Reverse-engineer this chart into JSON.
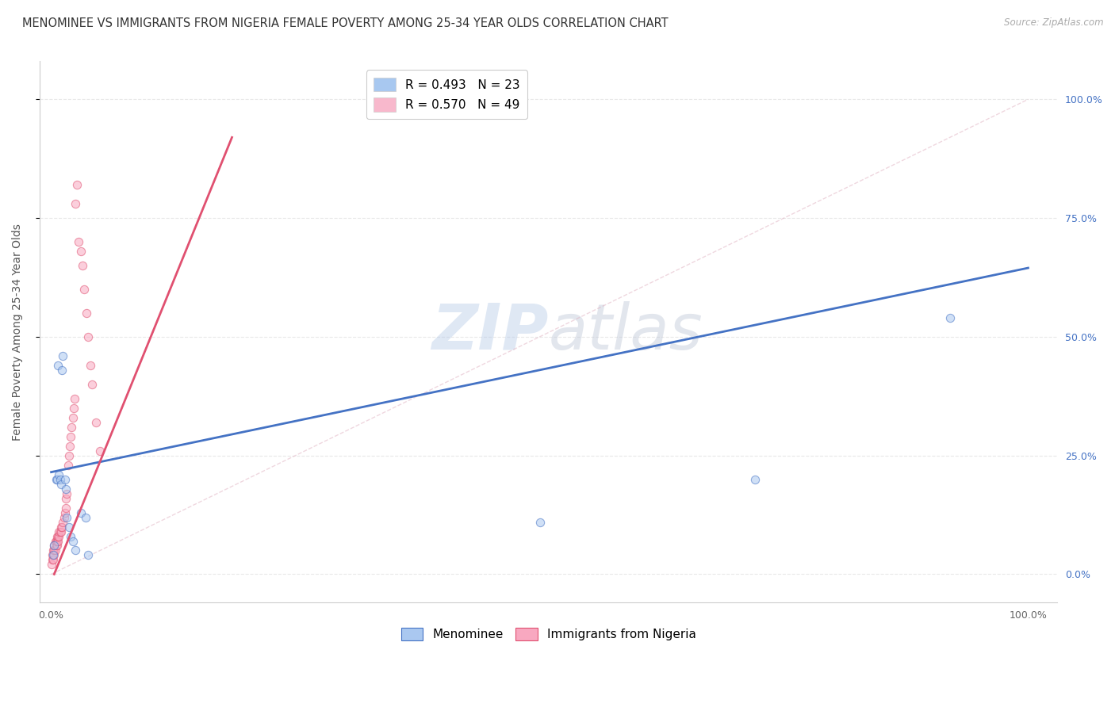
{
  "title": "MENOMINEE VS IMMIGRANTS FROM NIGERIA FEMALE POVERTY AMONG 25-34 YEAR OLDS CORRELATION CHART",
  "source": "Source: ZipAtlas.com",
  "ylabel": "Female Poverty Among 25-34 Year Olds",
  "ytick_vals": [
    0.0,
    0.25,
    0.5,
    0.75,
    1.0
  ],
  "ytick_labels": [
    "0.0%",
    "25.0%",
    "50.0%",
    "75.0%",
    "100.0%"
  ],
  "xtick_vals": [
    0.0,
    0.5,
    1.0
  ],
  "xtick_labels": [
    "0.0%",
    "",
    "100.0%"
  ],
  "watermark_zip": "ZIP",
  "watermark_atlas": "atlas",
  "legend1": [
    {
      "label": "R = 0.493   N = 23",
      "color": "#a8c8f0"
    },
    {
      "label": "R = 0.570   N = 49",
      "color": "#f8b8cc"
    }
  ],
  "legend2_menominee": "Menominee",
  "legend2_nigeria": "Immigrants from Nigeria",
  "menominee_x": [
    0.002,
    0.003,
    0.005,
    0.006,
    0.007,
    0.008,
    0.009,
    0.01,
    0.011,
    0.012,
    0.014,
    0.015,
    0.016,
    0.018,
    0.02,
    0.022,
    0.025,
    0.03,
    0.035,
    0.038,
    0.5,
    0.72,
    0.92
  ],
  "menominee_y": [
    0.04,
    0.06,
    0.2,
    0.2,
    0.44,
    0.21,
    0.2,
    0.19,
    0.43,
    0.46,
    0.2,
    0.18,
    0.12,
    0.1,
    0.08,
    0.07,
    0.05,
    0.13,
    0.12,
    0.04,
    0.11,
    0.2,
    0.54
  ],
  "nigeria_x": [
    0.0,
    0.001,
    0.001,
    0.002,
    0.002,
    0.003,
    0.003,
    0.003,
    0.004,
    0.004,
    0.005,
    0.005,
    0.006,
    0.006,
    0.006,
    0.007,
    0.007,
    0.008,
    0.008,
    0.009,
    0.01,
    0.01,
    0.011,
    0.012,
    0.013,
    0.014,
    0.015,
    0.015,
    0.016,
    0.017,
    0.018,
    0.019,
    0.02,
    0.021,
    0.022,
    0.023,
    0.024,
    0.025,
    0.026,
    0.028,
    0.03,
    0.032,
    0.034,
    0.036,
    0.038,
    0.04,
    0.042,
    0.046,
    0.05
  ],
  "nigeria_y": [
    0.02,
    0.03,
    0.04,
    0.03,
    0.05,
    0.04,
    0.05,
    0.06,
    0.05,
    0.07,
    0.06,
    0.07,
    0.06,
    0.07,
    0.08,
    0.07,
    0.08,
    0.08,
    0.09,
    0.09,
    0.09,
    0.1,
    0.1,
    0.11,
    0.12,
    0.13,
    0.14,
    0.16,
    0.17,
    0.23,
    0.25,
    0.27,
    0.29,
    0.31,
    0.33,
    0.35,
    0.37,
    0.78,
    0.82,
    0.7,
    0.68,
    0.65,
    0.6,
    0.55,
    0.5,
    0.44,
    0.4,
    0.32,
    0.26
  ],
  "blue_line": {
    "x0": 0.0,
    "y0": 0.215,
    "x1": 1.0,
    "y1": 0.645
  },
  "pink_line": {
    "x0": 0.003,
    "y0": 0.0,
    "x1": 0.185,
    "y1": 0.92
  },
  "diag_line": {
    "x0": 0.0,
    "y0": 0.0,
    "x1": 1.0,
    "y1": 1.0
  },
  "dot_color_blue": "#aac8f0",
  "dot_color_pink": "#f8a8c0",
  "line_color_blue": "#4472c4",
  "line_color_pink": "#e05070",
  "diag_color": "#e0b0c0",
  "background_color": "#ffffff",
  "grid_color": "#e8e8e8",
  "ytick_color": "#4472c4",
  "title_fontsize": 10.5,
  "axis_label_fontsize": 10,
  "tick_fontsize": 9,
  "dot_size": 55,
  "dot_alpha": 0.55,
  "dot_edge_width": 0.8
}
